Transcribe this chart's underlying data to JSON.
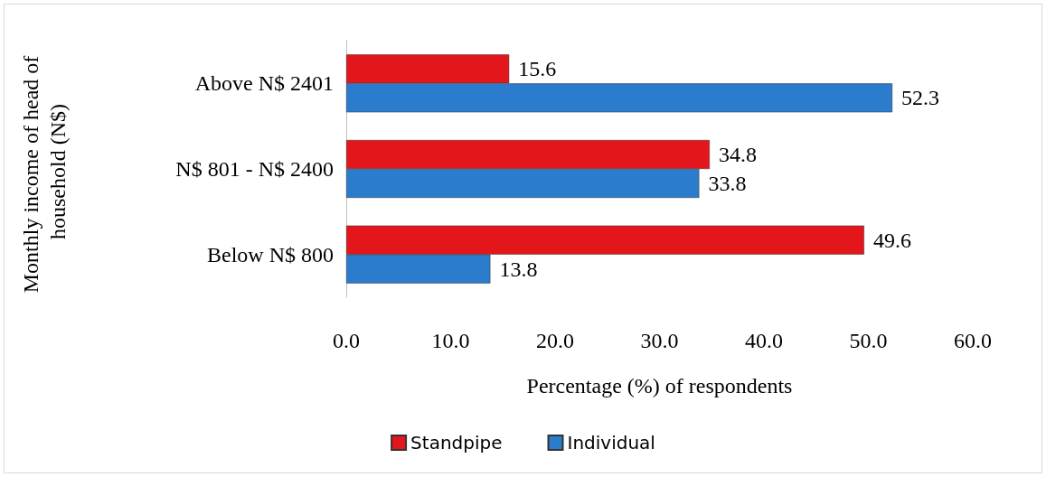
{
  "chart_data": {
    "type": "bar",
    "orientation": "horizontal",
    "categories": [
      "Above N$ 2401",
      "N$ 801 - N$ 2400",
      "Below N$ 800"
    ],
    "series": [
      {
        "name": "Standpipe",
        "color": "#e3161c",
        "values": [
          15.6,
          34.8,
          49.6
        ]
      },
      {
        "name": "Individual",
        "color": "#2b7ccc",
        "values": [
          52.3,
          33.8,
          13.8
        ]
      }
    ],
    "xlim": [
      0,
      60
    ],
    "xticks": [
      {
        "value": 0,
        "label": "0.0"
      },
      {
        "value": 10,
        "label": "10.0"
      },
      {
        "value": 20,
        "label": "20.0"
      },
      {
        "value": 30,
        "label": "30.0"
      },
      {
        "value": 40,
        "label": "40.0"
      },
      {
        "value": 50,
        "label": "50.0"
      },
      {
        "value": 60,
        "label": "60.0"
      }
    ],
    "xlabel": "Percentage (%) of respondents",
    "ylabel": "Monthly income of head of household (N$)",
    "data_labels": true,
    "grid": false,
    "legend": "bottom"
  }
}
